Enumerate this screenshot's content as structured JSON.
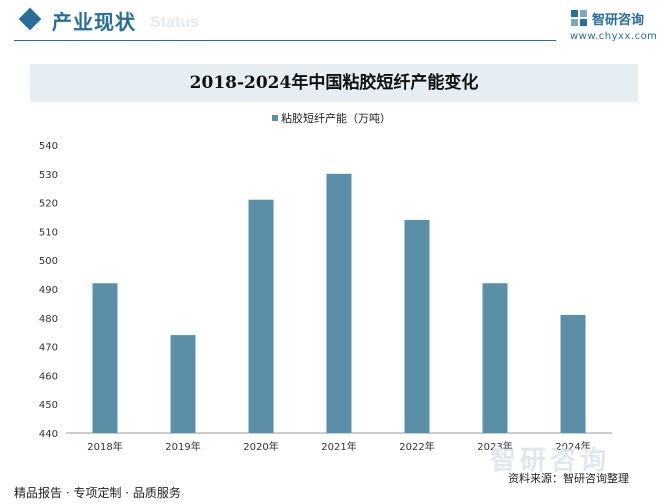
{
  "header": {
    "section_title": "产业现状",
    "section_subtitle": "Status",
    "logo_name": "智研咨询",
    "logo_url": "www.chyxx.com"
  },
  "chart_data": {
    "type": "bar",
    "title": "2018-2024年中国粘胶短纤产能变化",
    "categories": [
      "2018年",
      "2019年",
      "2020年",
      "2021年",
      "2022年",
      "2023年",
      "2024年"
    ],
    "series": [
      {
        "name": "粘胶短纤产能（万吨）",
        "values": [
          492,
          474,
          521,
          530,
          514,
          492,
          481
        ]
      }
    ],
    "ylim": [
      440,
      540
    ],
    "yticks": [
      440,
      450,
      460,
      470,
      480,
      490,
      500,
      510,
      520,
      530,
      540
    ],
    "grid": false,
    "legend": "top-center",
    "bar_color": "#5b8fa8"
  },
  "footer": {
    "left": "精品报告 · 专项定制 · 品质服务",
    "source": "资料来源：智研咨询整理",
    "watermark": "智研咨询"
  }
}
